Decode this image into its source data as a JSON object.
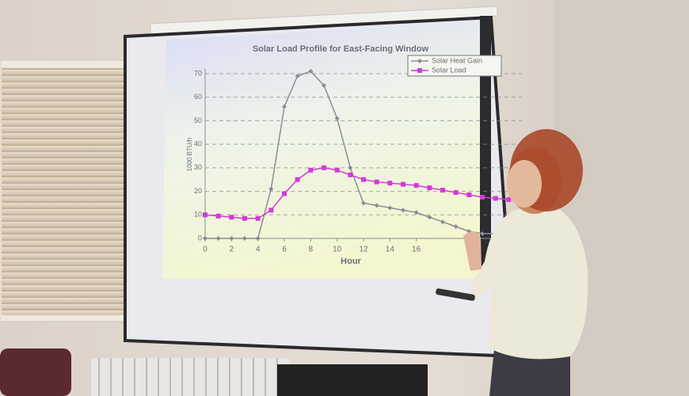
{
  "chart_data": {
    "type": "line",
    "title": "Solar Load Profile for East-Facing Window",
    "x_label": "Hour",
    "y_label": "1000 BTU/h",
    "x": [
      0,
      1,
      2,
      3,
      4,
      5,
      6,
      7,
      8,
      9,
      10,
      11,
      12,
      13,
      14,
      15,
      16,
      17,
      18,
      19,
      20,
      21,
      22,
      23
    ],
    "series": [
      {
        "name": "Solar Heat Gain",
        "color": "#8c8c98",
        "values": [
          0,
          0,
          0,
          0,
          0,
          21,
          56,
          69,
          71,
          65,
          51,
          30,
          15,
          14,
          13,
          12,
          11,
          9,
          7,
          5,
          3,
          2,
          2,
          2
        ]
      },
      {
        "name": "Solar Load",
        "color": "#d23ad8",
        "values": [
          10,
          9.5,
          9,
          8.5,
          8.5,
          12,
          19,
          25,
          29,
          30,
          29,
          27,
          25,
          24,
          23.5,
          23,
          22.5,
          21.5,
          20.5,
          19.5,
          18.5,
          17.5,
          17,
          16.5
        ]
      }
    ],
    "xlim": [
      0,
      24
    ],
    "xticks": [
      0,
      2,
      4,
      6,
      8,
      10,
      12,
      14,
      16
    ],
    "ylim": [
      0,
      70
    ],
    "yticks": [
      0,
      10,
      20,
      30,
      40,
      50,
      60,
      70
    ],
    "grid": true,
    "legend": "top-right"
  }
}
